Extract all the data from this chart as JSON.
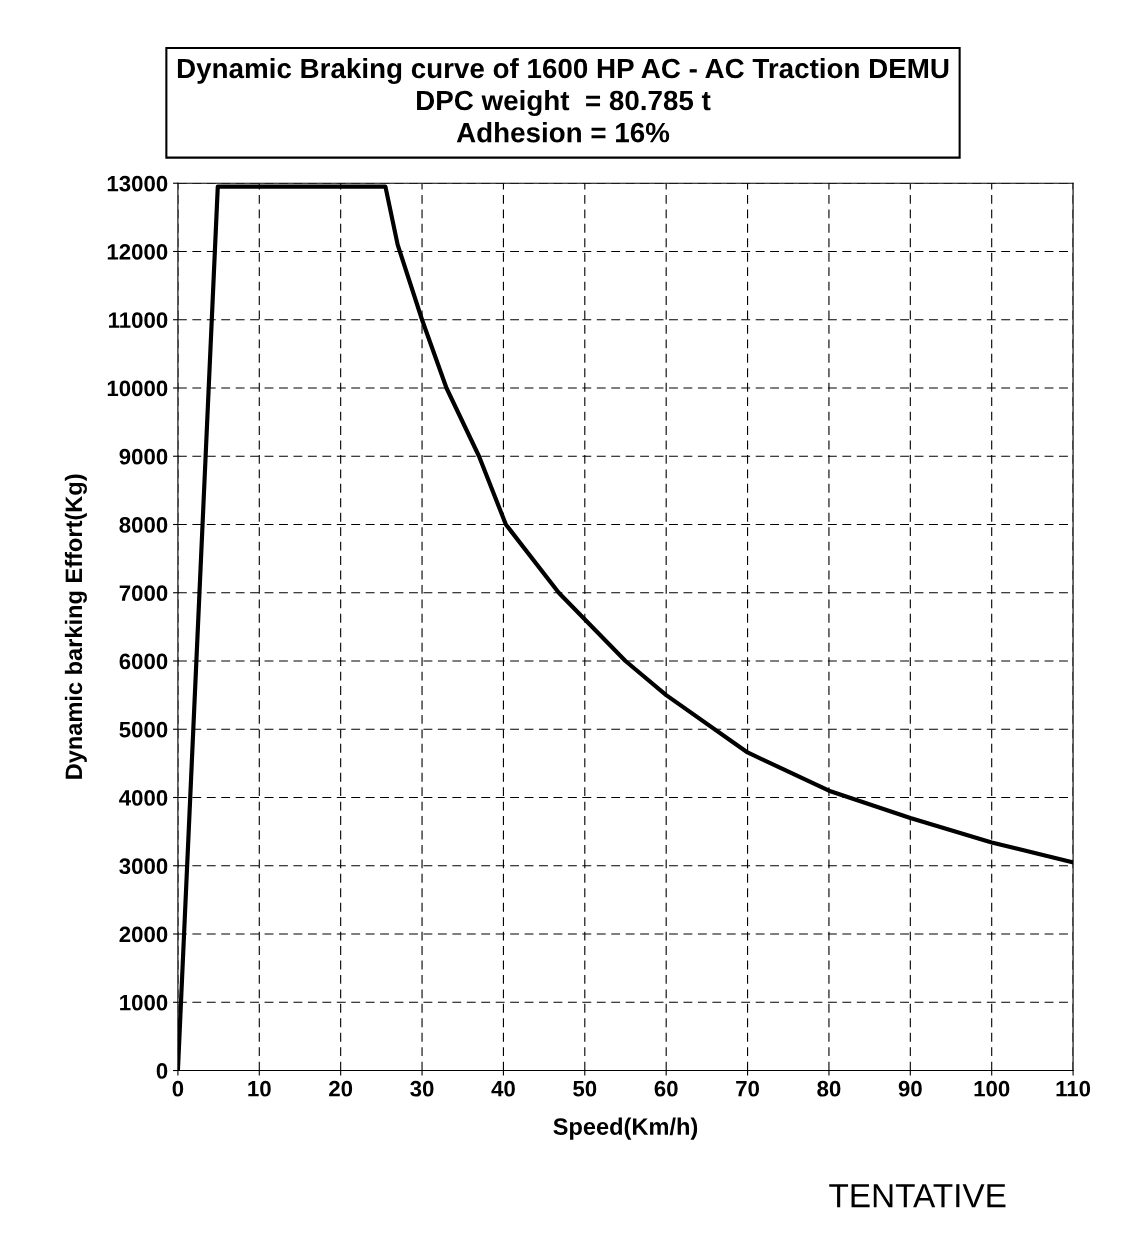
{
  "chart_data": {
    "type": "line",
    "title": "Dynamic Braking curve of 1600 HP AC - AC Traction DEMU\nDPC weight  = 80.785 t\nAdhesion = 16%",
    "xlabel": "Speed(Km/h)",
    "ylabel": "Dynamic barking Effort(Kg)",
    "x": [
      0,
      4.9,
      25.5,
      27,
      30,
      33,
      37,
      40.3,
      46.8,
      55,
      60,
      70,
      80,
      90,
      100,
      110
    ],
    "series": [
      {
        "color": "#000000",
        "values": [
          0,
          12950,
          12950,
          12100,
          11000,
          10000,
          9000,
          8000,
          7000,
          6000,
          5500,
          4660,
          4100,
          3700,
          3340,
          3050
        ]
      }
    ],
    "xlim": [
      0,
      110
    ],
    "xticks": [
      0,
      10,
      20,
      30,
      40,
      50,
      60,
      70,
      80,
      90,
      100,
      110
    ],
    "ylim": [
      0,
      13000
    ],
    "yticks": [
      0,
      1000,
      2000,
      3000,
      4000,
      5000,
      6000,
      7000,
      8000,
      9000,
      10000,
      11000,
      12000,
      13000
    ],
    "grid": true,
    "line_style": "solid",
    "marker": "none",
    "annotations": [
      "TENTATIVE"
    ]
  }
}
